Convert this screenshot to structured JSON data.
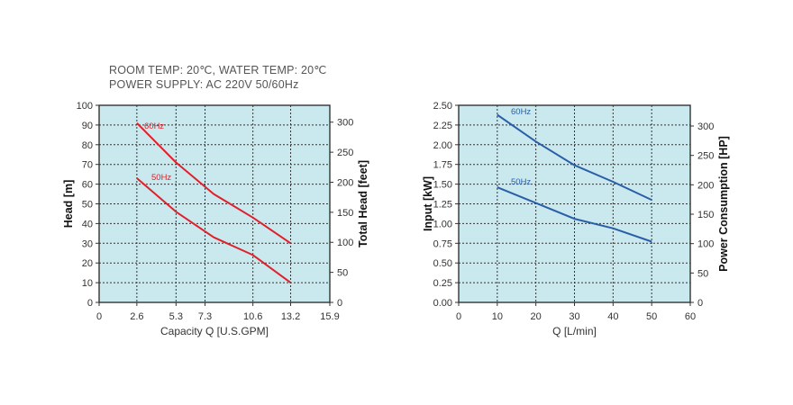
{
  "notes": {
    "conditions": "ROOM TEMP: 20℃, WATER TEMP: 20℃",
    "power_supply": "POWER SUPPLY: AC 220V 50/60Hz"
  },
  "colors": {
    "plot_bg": "#c9e9ee",
    "grid": "#333333",
    "head_curve": "#e0202a",
    "input_curve": "#2a5ea8"
  },
  "chart_data": [
    {
      "type": "line",
      "xlabel": "Capacity Q [U.S.GPM]",
      "ylabel": "Head [m]",
      "y2label": "Total Head [feet]",
      "xlim": [
        0,
        15.9
      ],
      "ylim": [
        0,
        100
      ],
      "y2lim": [
        0,
        328.08
      ],
      "x_ticks": [
        0,
        2.6,
        5.3,
        7.3,
        10.6,
        13.2,
        15.9
      ],
      "x_tick_labels": [
        "0",
        "2.6",
        "5.3",
        "7.3",
        "10.6",
        "13.2",
        "15.9"
      ],
      "y_ticks": [
        0,
        10,
        20,
        30,
        40,
        50,
        60,
        70,
        80,
        90,
        100
      ],
      "y_tick_labels": [
        "0",
        "10",
        "20",
        "30",
        "40",
        "50",
        "60",
        "70",
        "80",
        "90",
        "100"
      ],
      "y2_ticks": [
        0,
        50,
        100,
        150,
        200,
        250,
        300
      ],
      "y2_tick_labels": [
        "0",
        "50",
        "100",
        "150",
        "200",
        "250",
        "300"
      ],
      "grid": true,
      "series": [
        {
          "name": "60Hz",
          "x": [
            2.6,
            5.3,
            7.9,
            10.6,
            13.2
          ],
          "y": [
            91,
            71,
            55,
            43,
            30
          ]
        },
        {
          "name": "50Hz",
          "x": [
            2.6,
            5.3,
            7.9,
            10.6,
            13.2
          ],
          "y": [
            63,
            46,
            33,
            24,
            10
          ]
        }
      ]
    },
    {
      "type": "line",
      "xlabel": "Q [L/min]",
      "ylabel": "Input [kW]",
      "y2label": "Power Consumption [HP]",
      "xlim": [
        0,
        60
      ],
      "ylim": [
        0,
        2.5
      ],
      "y2lim": [
        0,
        335.25
      ],
      "x_ticks": [
        0,
        10,
        20,
        30,
        40,
        50,
        60
      ],
      "x_tick_labels": [
        "0",
        "10",
        "20",
        "30",
        "40",
        "50",
        "60"
      ],
      "y_ticks": [
        0,
        0.25,
        0.5,
        0.75,
        1.0,
        1.25,
        1.5,
        1.75,
        2.0,
        2.25,
        2.5
      ],
      "y_tick_labels": [
        "0.00",
        "0.25",
        "0.50",
        "0.75",
        "1.00",
        "1.25",
        "1.50",
        "1.75",
        "2.00",
        "2.25",
        "2.50"
      ],
      "y2_ticks": [
        0,
        50,
        100,
        150,
        200,
        250,
        300
      ],
      "y2_tick_labels": [
        "0",
        "50",
        "100",
        "150",
        "200",
        "250",
        "300"
      ],
      "grid": true,
      "series": [
        {
          "name": "60Hz",
          "x": [
            10,
            20,
            30,
            40,
            50
          ],
          "y": [
            2.38,
            2.04,
            1.74,
            1.53,
            1.3
          ]
        },
        {
          "name": "50Hz",
          "x": [
            10,
            20,
            30,
            40,
            50
          ],
          "y": [
            1.46,
            1.26,
            1.06,
            0.94,
            0.77
          ]
        }
      ]
    }
  ]
}
